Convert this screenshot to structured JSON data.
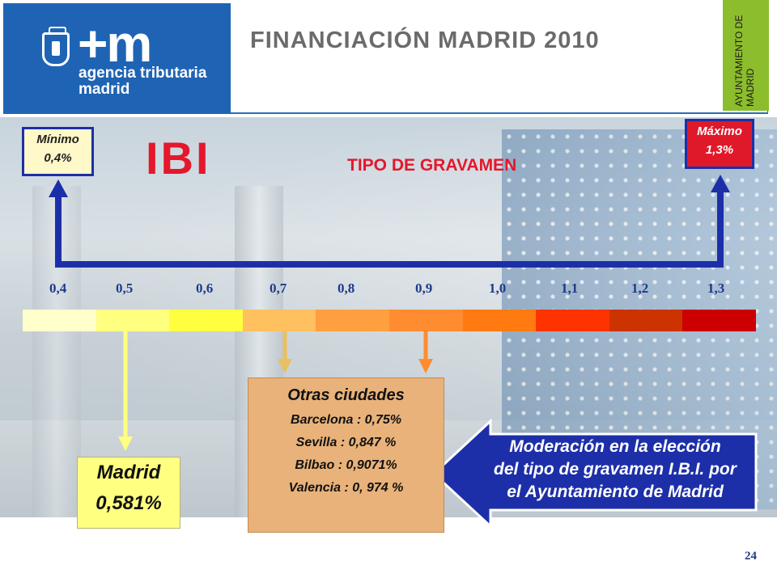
{
  "logo": {
    "mark": "+m",
    "line1": "agencia tributaria",
    "line2": "madrid",
    "crest_icon": "madrid-crest-icon"
  },
  "header": {
    "title": "FINANCIACIÓN MADRID 2010",
    "side_tab": "AYUNTAMIENTO DE MADRID"
  },
  "colors": {
    "logo_blue": "#1f64b4",
    "accent_red": "#e5172b",
    "arrow_blue": "#1d2fa8",
    "green_tab": "#8cbd2c"
  },
  "slide": {
    "ibi": "IBI",
    "subtitle": "TIPO DE GRAVAMEN",
    "min_label": "Mínimo",
    "min_value": "0,4%",
    "max_label": "Máximo",
    "max_value": "1,3%"
  },
  "scale": {
    "labels": [
      "0,4",
      "0,5",
      "0,6",
      "0,7",
      "0,8",
      "0,9",
      "1,0",
      "1,1",
      "1,2",
      "1,3"
    ],
    "segment_colors": [
      "#ffffcc",
      "#ffff80",
      "#ffff40",
      "#ffc060",
      "#ff9f40",
      "#ff8c30",
      "#ff7a10",
      "#ff3300",
      "#cc3300",
      "#cc0000"
    ]
  },
  "madrid": {
    "name": "Madrid",
    "value": "0,581%"
  },
  "otras": {
    "title": "Otras ciudades",
    "items": [
      "Barcelona : 0,75%",
      "Sevilla : 0,847 %",
      "Bilbao : 0,9071%",
      "Valencia :  0, 974 %"
    ]
  },
  "message": {
    "line1": "Moderación en la elección",
    "line2": "del tipo de gravamen I.B.I. por",
    "line3": "el Ayuntamiento de Madrid"
  },
  "page_number": "24"
}
